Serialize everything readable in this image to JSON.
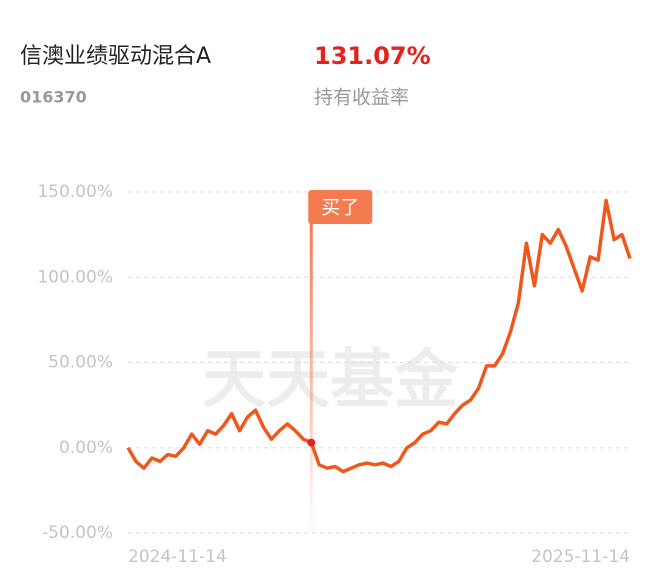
{
  "header": {
    "fund_name": "信澳业绩驱动混合A",
    "return_value": "131.07%",
    "fund_code": "016370",
    "return_label": "持有收益率"
  },
  "chart_data": {
    "type": "line",
    "watermark": "天天基金",
    "categories": [
      "2024-11-14",
      null,
      null,
      null,
      null,
      null,
      null,
      null,
      null,
      null,
      null,
      null,
      null,
      null,
      null,
      null,
      null,
      null,
      null,
      null,
      null,
      null,
      null,
      null,
      null,
      null,
      null,
      null,
      null,
      null,
      null,
      null,
      null,
      null,
      null,
      null,
      null,
      null,
      null,
      null,
      null,
      null,
      null,
      null,
      null,
      null,
      null,
      null,
      null,
      null,
      null,
      null,
      null,
      null,
      null,
      null,
      null,
      null,
      null,
      null,
      null,
      null,
      null,
      "2025-11-14"
    ],
    "series": [
      {
        "color": "#f0571c",
        "values": [
          0,
          -8,
          -12,
          -6,
          -8,
          -4,
          -5,
          0,
          8,
          2,
          10,
          8,
          13,
          20,
          10,
          18,
          22,
          12,
          5,
          10,
          14,
          10,
          5,
          3,
          -10,
          -12,
          -11,
          -14,
          -12,
          -10,
          -9,
          -10,
          -9,
          -11,
          -8,
          0,
          3,
          8,
          10,
          15,
          14,
          20,
          25,
          28,
          35,
          48,
          48,
          55,
          68,
          85,
          120,
          95,
          125,
          120,
          128,
          118,
          105,
          92,
          112,
          110,
          145,
          122,
          125,
          111
        ]
      }
    ],
    "annotation": {
      "text": "买了",
      "index": 23,
      "color": "#f47a4f"
    },
    "ylim": [
      -50,
      150
    ],
    "yticks": [
      {
        "value": 150,
        "label": "150.00%"
      },
      {
        "value": 100,
        "label": "100.00%"
      },
      {
        "value": 50,
        "label": "50.00%"
      },
      {
        "value": 0,
        "label": "0.00%"
      },
      {
        "value": -50,
        "label": "-50.00%"
      }
    ],
    "grid": true
  }
}
